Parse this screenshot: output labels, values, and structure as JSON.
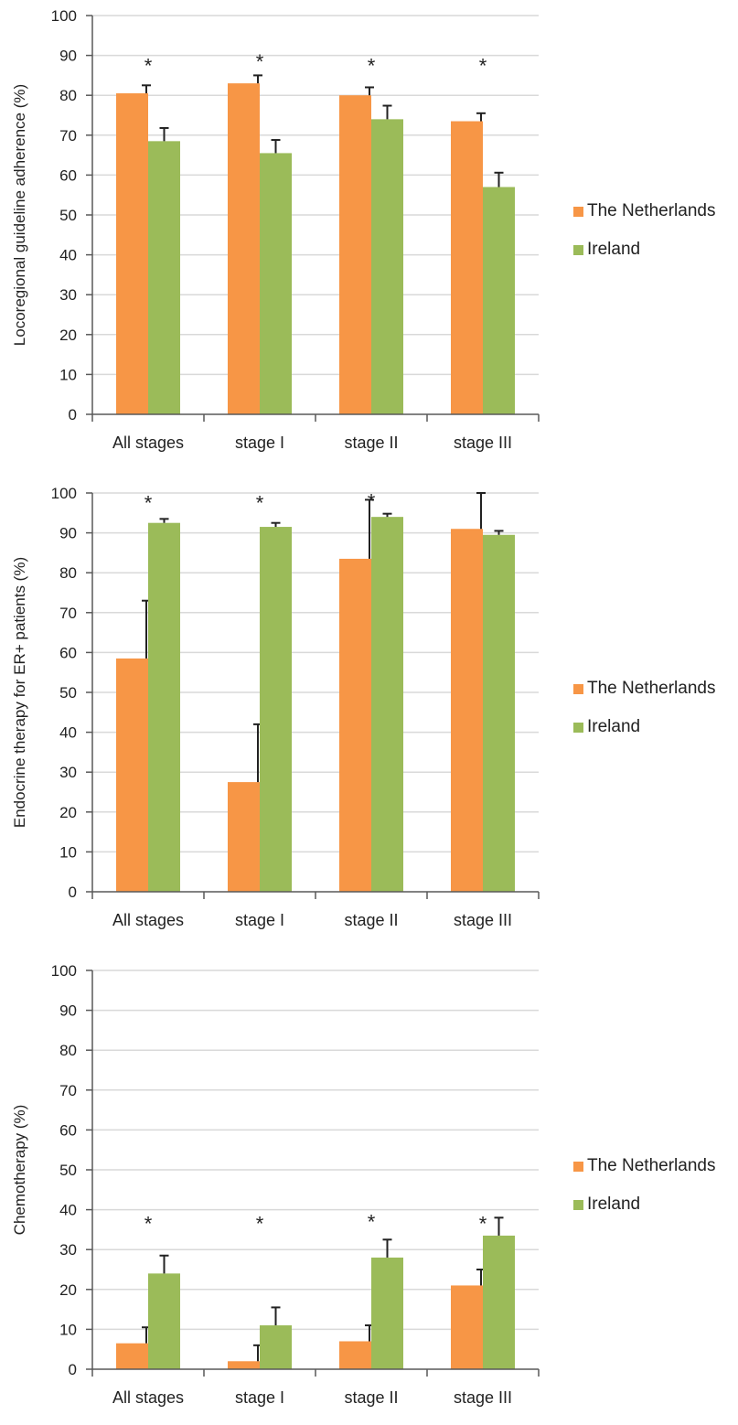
{
  "colors": {
    "netherlands": "#F79646",
    "ireland": "#9BBB59",
    "grid": "#D9D9D9",
    "axis": "#595959",
    "error_bar": "#222222"
  },
  "chart_data": [
    {
      "type": "bar",
      "ylabel": "Locoregional guideline adherence (%)",
      "categories": [
        "All stages",
        "stage I",
        "stage II",
        "stage III"
      ],
      "ylim": [
        0,
        100
      ],
      "yticks": [
        0,
        10,
        20,
        30,
        40,
        50,
        60,
        70,
        80,
        90,
        100
      ],
      "grid": true,
      "legend_position": "right",
      "series": [
        {
          "name": "The Netherlands",
          "values": [
            80.5,
            83,
            80,
            73.5
          ],
          "errors": [
            2,
            2,
            2,
            2
          ]
        },
        {
          "name": "Ireland",
          "values": [
            68.5,
            65.5,
            74,
            57
          ],
          "errors": [
            3.3,
            3.3,
            3.4,
            3.6
          ]
        }
      ],
      "annotations": [
        {
          "category": "All stages",
          "text": "*",
          "y": 88
        },
        {
          "category": "stage I",
          "text": "*",
          "y": 89
        },
        {
          "category": "stage II",
          "text": "*",
          "y": 88
        },
        {
          "category": "stage III",
          "text": "*",
          "y": 88
        }
      ]
    },
    {
      "type": "bar",
      "ylabel": "Endocrine therapy for ER+ patients (%)",
      "categories": [
        "All stages",
        "stage I",
        "stage II",
        "stage III"
      ],
      "ylim": [
        0,
        100
      ],
      "yticks": [
        0,
        10,
        20,
        30,
        40,
        50,
        60,
        70,
        80,
        90,
        100
      ],
      "grid": true,
      "legend_position": "right",
      "series": [
        {
          "name": "The Netherlands",
          "values": [
            58.5,
            27.5,
            83.5,
            91
          ],
          "errors": [
            14.5,
            14.5,
            14.8,
            9.5
          ]
        },
        {
          "name": "Ireland",
          "values": [
            92.5,
            91.5,
            94,
            89.5
          ],
          "errors": [
            1,
            1,
            0.8,
            1
          ]
        }
      ],
      "annotations": [
        {
          "category": "All stages",
          "text": "*",
          "y": 98
        },
        {
          "category": "stage I",
          "text": "*",
          "y": 98
        },
        {
          "category": "stage II",
          "text": "*",
          "y": 98.5
        }
      ]
    },
    {
      "type": "bar",
      "ylabel": "Chemotherapy (%)",
      "categories": [
        "All stages",
        "stage I",
        "stage II",
        "stage III"
      ],
      "ylim": [
        0,
        100
      ],
      "yticks": [
        0,
        10,
        20,
        30,
        40,
        50,
        60,
        70,
        80,
        90,
        100
      ],
      "grid": true,
      "legend_position": "right",
      "series": [
        {
          "name": "The Netherlands",
          "values": [
            6.5,
            2,
            7,
            21
          ],
          "errors": [
            4,
            4,
            4,
            4
          ]
        },
        {
          "name": "Ireland",
          "values": [
            24,
            11,
            28,
            33.5
          ],
          "errors": [
            4.5,
            4.5,
            4.5,
            4.5
          ]
        }
      ],
      "annotations": [
        {
          "category": "All stages",
          "text": "*",
          "y": 37
        },
        {
          "category": "stage I",
          "text": "*",
          "y": 37
        },
        {
          "category": "stage II",
          "text": "*",
          "y": 37.5
        },
        {
          "category": "stage III",
          "text": "*",
          "y": 37
        }
      ]
    }
  ]
}
